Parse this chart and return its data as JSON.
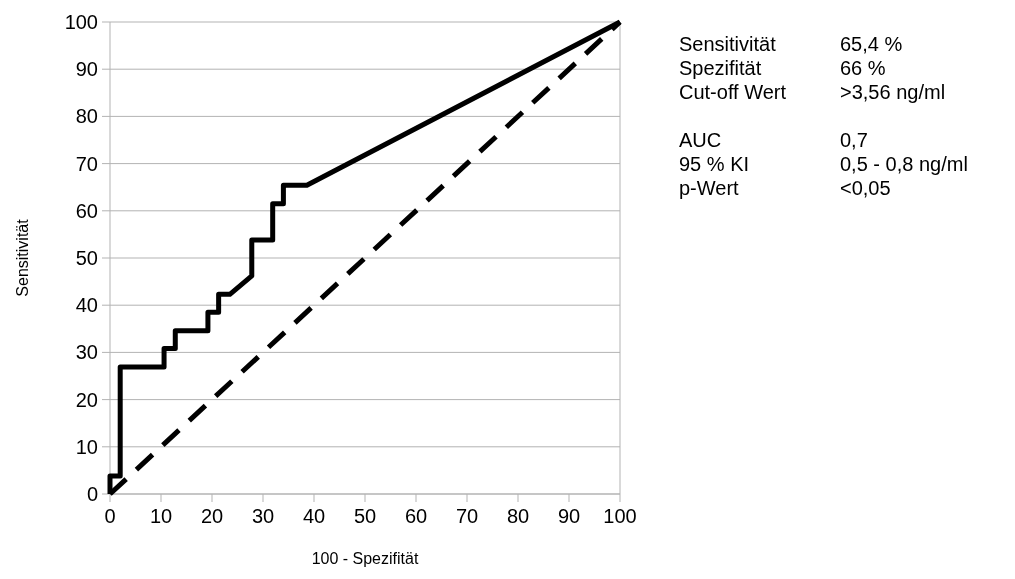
{
  "chart_data": {
    "type": "line",
    "xlabel": "100 - Spezifität",
    "ylabel": "Sensitivität",
    "xlim": [
      0,
      100
    ],
    "ylim": [
      0,
      100
    ],
    "xticks": [
      0,
      10,
      20,
      30,
      40,
      50,
      60,
      70,
      80,
      90,
      100
    ],
    "yticks": [
      0,
      10,
      20,
      30,
      40,
      50,
      60,
      70,
      80,
      90,
      100
    ],
    "grid": "y",
    "series": [
      {
        "color": "#000000",
        "line_style": "solid",
        "x": [
          0,
          0,
          2,
          2,
          10.6,
          10.6,
          12.8,
          12.8,
          19.2,
          19.2,
          21.3,
          21.3,
          23.5,
          27.8,
          27.8,
          31.9,
          31.9,
          34,
          34,
          38.6,
          100
        ],
        "values": [
          0,
          3.8,
          3.8,
          26.9,
          26.9,
          30.8,
          30.8,
          34.6,
          34.6,
          38.5,
          38.5,
          42.3,
          42.3,
          46.2,
          53.8,
          53.8,
          61.5,
          61.5,
          65.4,
          65.4,
          100
        ]
      },
      {
        "color": "#000000",
        "line_style": "dashed",
        "x": [
          0,
          100
        ],
        "values": [
          0,
          100
        ]
      }
    ],
    "annotations": [
      "Sensitivität",
      "65,4 %",
      "Spezifität",
      "66 %",
      "Cut-off Wert",
      ">3,56 ng/ml",
      "AUC",
      "0,7",
      "95 % KI",
      "0,5 - 0,8 ng/ml",
      "p-Wert",
      "<0,05"
    ]
  }
}
